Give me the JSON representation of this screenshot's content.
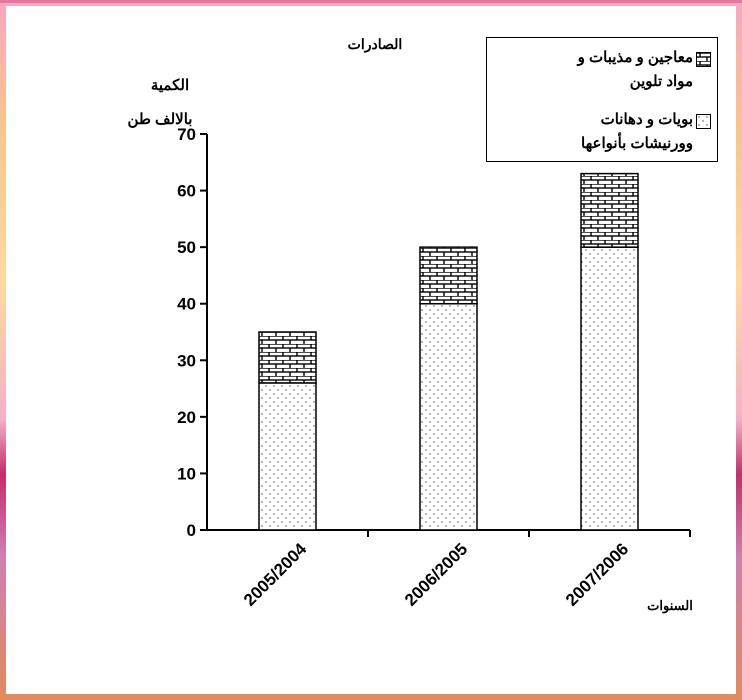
{
  "chart_data": {
    "type": "bar",
    "stacked": true,
    "title": "الصادرات",
    "ylabel_lines": [
      "الكمية",
      "بالالف طن"
    ],
    "xlabel": "السنوات",
    "categories": [
      "2005/2004",
      "2006/2005",
      "2007/2006"
    ],
    "ylim": [
      0,
      70
    ],
    "yticks": [
      0,
      10,
      20,
      30,
      40,
      50,
      60,
      70
    ],
    "series": [
      {
        "name": "بويات و دهانات ووورنيشات بأنواعها",
        "legend_lines": [
          "بويات و دهانات",
          "وورنيشات بأنواعها"
        ],
        "pattern": "dots",
        "values": [
          26,
          40,
          50
        ]
      },
      {
        "name": "معاجين و مذيبات و مواد تلوين",
        "legend_lines": [
          "معاجين و مذيبات و",
          "مواد تلوين"
        ],
        "pattern": "bricks",
        "values": [
          9,
          10,
          13
        ]
      }
    ],
    "legend_position": "top-right",
    "grid": false
  }
}
